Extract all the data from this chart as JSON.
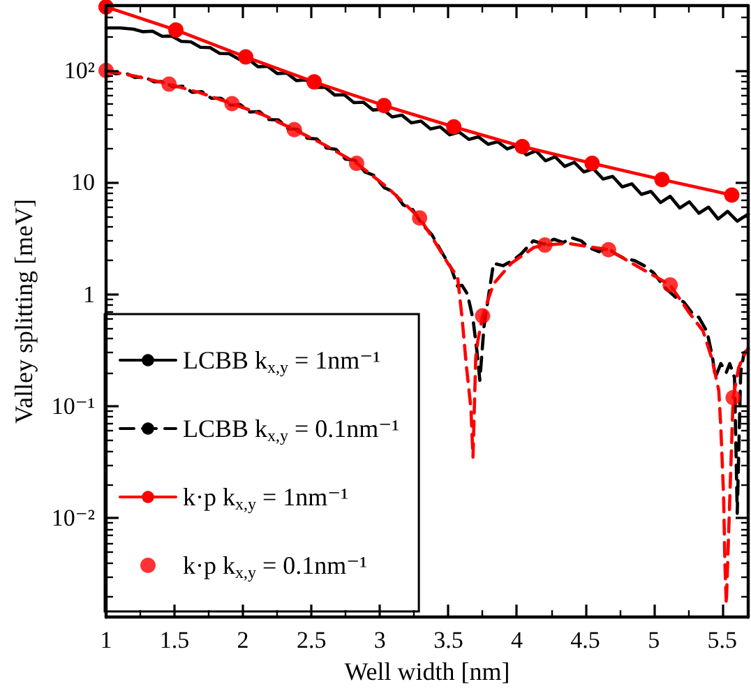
{
  "chart_data": {
    "type": "line",
    "xlabel": "Well width [nm]",
    "ylabel": "Valley splitting [meV]",
    "log": "y",
    "legend": "bottom left",
    "xlim": [
      1,
      5.69
    ],
    "ylim": [
      0.0013,
      380
    ],
    "xticks": [
      1,
      {
        "value": 1.25,
        "label": null
      },
      1.5,
      {
        "value": 1.75,
        "label": null
      },
      2,
      {
        "value": 2.25,
        "label": null
      },
      2.5,
      {
        "value": 2.75,
        "label": null
      },
      3,
      {
        "value": 3.25,
        "label": null
      },
      3.5,
      {
        "value": 3.75,
        "label": null
      },
      4,
      {
        "value": 4.25,
        "label": null
      },
      4.5,
      {
        "value": 4.75,
        "label": null
      },
      5,
      {
        "value": 5.25,
        "label": null
      },
      5.5
    ],
    "yticks": [
      {
        "value": 0.002,
        "label": null
      },
      {
        "value": 0.003,
        "label": null
      },
      {
        "value": 0.004,
        "label": null
      },
      {
        "value": 0.005,
        "label": null
      },
      {
        "value": 0.006,
        "label": null
      },
      {
        "value": 0.007,
        "label": null
      },
      {
        "value": 0.008,
        "label": null
      },
      {
        "value": 0.009,
        "label": null
      },
      {
        "value": 0.01,
        "label": "10⁻²"
      },
      {
        "value": 0.02,
        "label": null
      },
      {
        "value": 0.03,
        "label": null
      },
      {
        "value": 0.04,
        "label": null
      },
      {
        "value": 0.05,
        "label": null
      },
      {
        "value": 0.06,
        "label": null
      },
      {
        "value": 0.07,
        "label": null
      },
      {
        "value": 0.08,
        "label": null
      },
      {
        "value": 0.09,
        "label": null
      },
      {
        "value": 0.1,
        "label": "10⁻¹"
      },
      {
        "value": 0.2,
        "label": null
      },
      {
        "value": 0.3,
        "label": null
      },
      {
        "value": 0.4,
        "label": null
      },
      {
        "value": 0.5,
        "label": null
      },
      {
        "value": 0.6,
        "label": null
      },
      {
        "value": 0.7,
        "label": null
      },
      {
        "value": 0.8,
        "label": null
      },
      {
        "value": 0.9,
        "label": null
      },
      1,
      {
        "value": 2,
        "label": null
      },
      {
        "value": 3,
        "label": null
      },
      {
        "value": 4,
        "label": null
      },
      {
        "value": 5,
        "label": null
      },
      {
        "value": 6,
        "label": null
      },
      {
        "value": 7,
        "label": null
      },
      {
        "value": 8,
        "label": null
      },
      {
        "value": 9,
        "label": null
      },
      10,
      {
        "value": 20,
        "label": null
      },
      {
        "value": 30,
        "label": null
      },
      {
        "value": 40,
        "label": null
      },
      {
        "value": 50,
        "label": null
      },
      {
        "value": 60,
        "label": null
      },
      {
        "value": 70,
        "label": null
      },
      {
        "value": 80,
        "label": null
      },
      {
        "value": 90,
        "label": null
      },
      {
        "value": 100,
        "label": "10²"
      },
      {
        "value": 200,
        "label": null
      },
      {
        "value": 300,
        "label": null
      }
    ],
    "series": [
      {
        "name": "LCBB k$_{x,y}$ = 1nm⁻¹",
        "color": "#000000",
        "line_style": "solid",
        "marker": "none",
        "x": [
          1.0,
          1.1,
          1.2,
          1.27,
          1.34,
          1.41,
          1.48,
          1.55,
          1.62,
          1.69,
          1.76,
          1.83,
          1.9,
          1.97,
          2.04,
          2.11,
          2.18,
          2.25,
          2.32,
          2.39,
          2.46,
          2.53,
          2.6,
          2.67,
          2.74,
          2.81,
          2.88,
          2.95,
          3.02,
          3.09,
          3.16,
          3.23,
          3.3,
          3.37,
          3.44,
          3.51,
          3.58,
          3.65,
          3.72,
          3.79,
          3.86,
          3.93,
          4.0,
          4.07,
          4.14,
          4.21,
          4.28,
          4.35,
          4.42,
          4.49,
          4.56,
          4.63,
          4.7,
          4.77,
          4.84,
          4.91,
          4.98,
          5.05,
          5.12,
          5.19,
          5.26,
          5.33,
          5.4,
          5.47,
          5.54,
          5.61,
          5.69
        ],
        "values": [
          240,
          240,
          234,
          222,
          224,
          202,
          203,
          182,
          180,
          161,
          160,
          142,
          141,
          126,
          126,
          108,
          109,
          93.8,
          94.8,
          81.3,
          82.4,
          70.5,
          70.8,
          60.3,
          60.7,
          51.6,
          52,
          44.3,
          45.1,
          38.4,
          39.9,
          34,
          35.3,
          30,
          31.3,
          26.6,
          28.1,
          24.2,
          25.5,
          21.9,
          23.1,
          19.9,
          21.4,
          17.6,
          19.1,
          15.6,
          16.9,
          13.9,
          15.1,
          12.4,
          13.2,
          10.7,
          11.3,
          9.1,
          9.7,
          7.8,
          8.3,
          6.6,
          7.5,
          5.9,
          6.7,
          5.3,
          6,
          4.7,
          5.5,
          4.5,
          5.2
        ]
      },
      {
        "name": "LCBB k$_{x,y}$ = 0.1nm⁻¹",
        "color": "#000000",
        "line_style": "dashed",
        "marker": "none",
        "x": [
          1.0,
          1.07,
          1.14,
          1.21,
          1.28,
          1.35,
          1.42,
          1.49,
          1.56,
          1.63,
          1.7,
          1.77,
          1.84,
          1.91,
          1.98,
          2.05,
          2.12,
          2.19,
          2.26,
          2.33,
          2.4,
          2.47,
          2.54,
          2.61,
          2.68,
          2.75,
          2.82,
          2.89,
          2.96,
          3.03,
          3.1,
          3.17,
          3.24,
          3.31,
          3.38,
          3.45,
          3.52,
          3.567,
          3.6,
          3.64,
          3.68,
          3.71,
          3.73,
          3.76,
          3.8,
          3.83,
          3.9,
          3.97,
          4.03,
          4.12,
          4.2,
          4.27,
          4.34,
          4.4,
          4.47,
          4.53,
          4.6,
          4.66,
          4.72,
          4.78,
          4.86,
          4.93,
          5.0,
          5.08,
          5.16,
          5.22,
          5.28,
          5.33,
          5.39,
          5.43,
          5.45,
          5.49,
          5.53,
          5.555,
          5.59,
          5.61,
          5.635,
          5.66,
          5.69
        ],
        "values": [
          100,
          93.5,
          95.1,
          86.5,
          87.5,
          79.1,
          79.6,
          71.3,
          72.3,
          63.8,
          64.6,
          56.4,
          56.4,
          48.9,
          49.5,
          42.5,
          43,
          36.4,
          36.1,
          30.1,
          29.8,
          24.8,
          24.4,
          20.3,
          19.7,
          16.1,
          15.7,
          12.4,
          11.5,
          9,
          8.2,
          6.3,
          5.7,
          4.2,
          3.4,
          2.4,
          1.72,
          1.18,
          1.2,
          1.0,
          0.6,
          0.3,
          0.17,
          0.51,
          1.09,
          1.89,
          1.8,
          2.0,
          2.28,
          3.0,
          2.8,
          3.1,
          2.9,
          3.2,
          3.0,
          2.6,
          2.4,
          2.6,
          2.3,
          2.1,
          2.0,
          1.8,
          1.55,
          1.15,
          0.94,
          0.85,
          0.68,
          0.62,
          0.46,
          0.27,
          0.18,
          0.24,
          0.2,
          0.24,
          0.18,
          0.011,
          0.2,
          0.3,
          0.32
        ]
      },
      {
        "name": "k·p k$_{x,y}$ = 1nm⁻¹",
        "color": "#ff0000",
        "line_style": "solid",
        "marker": "circle",
        "x": [
          1.0,
          1.51,
          2.02,
          2.52,
          3.03,
          3.54,
          4.04,
          4.55,
          5.06,
          5.57
        ],
        "values": [
          370,
          230,
          132,
          79,
          48.6,
          31.3,
          20.9,
          14.8,
          10.6,
          7.7
        ]
      },
      {
        "type": "line",
        "color": "#ff0000",
        "line_style": "dashed",
        "marker": "none",
        "x": [
          1.0,
          1.23,
          1.46,
          1.69,
          1.92,
          2.15,
          2.375,
          2.6,
          2.83,
          3.06,
          3.29,
          3.38,
          3.5,
          3.567,
          3.6,
          3.63,
          3.665,
          3.68,
          3.7,
          3.715,
          3.75,
          3.83,
          3.96,
          4.125,
          4.205,
          4.37,
          4.67,
          4.9,
          5.12,
          5.26,
          5.36,
          5.425,
          5.475,
          5.49,
          5.51,
          5.52,
          5.53,
          5.58,
          5.62,
          5.65,
          5.69
        ],
        "values": [
          100,
          88,
          75.5,
          63,
          50.5,
          40,
          29.6,
          21.5,
          14.8,
          8.9,
          4.8,
          3.25,
          1.86,
          1.44,
          0.62,
          0.24,
          0.095,
          0.035,
          0.27,
          0.38,
          0.64,
          1.24,
          1.89,
          2.62,
          2.75,
          2.85,
          2.5,
          1.72,
          1.21,
          0.68,
          0.47,
          0.265,
          0.138,
          0.065,
          0.016,
          0.0039,
          0.0017,
          0.119,
          0.22,
          0.27,
          0.33
        ]
      },
      {
        "type": "scatter",
        "name": "k·p k$_{x,y}$ = 0.1nm⁻¹",
        "color": "#ff0000",
        "marker": "circle",
        "x": [
          1.0,
          1.46,
          1.92,
          2.375,
          2.83,
          3.29,
          3.75,
          4.205,
          4.67,
          5.12,
          5.58
        ],
        "values": [
          100,
          75.5,
          50.5,
          29.6,
          14.8,
          4.8,
          0.64,
          2.75,
          2.5,
          1.21,
          0.119
        ]
      }
    ]
  }
}
